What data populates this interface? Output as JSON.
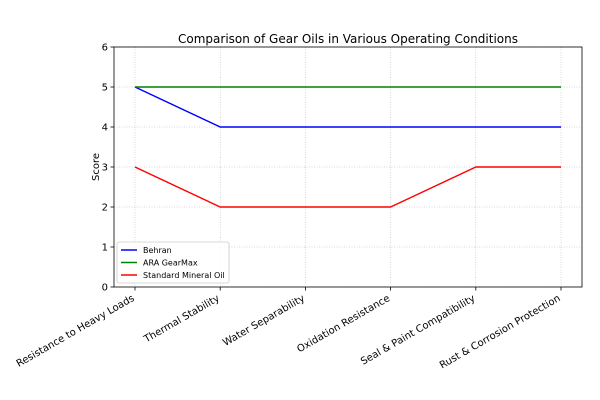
{
  "chart_data": {
    "type": "line",
    "title": "Comparison of Gear Oils in Various Operating Conditions",
    "xlabel": "",
    "ylabel": "Score",
    "ylim": [
      0,
      6
    ],
    "yticks": [
      "0",
      "1",
      "2",
      "3",
      "4",
      "5",
      "6"
    ],
    "grid": true,
    "legend_position": "lower-left",
    "categories": [
      "Resistance to Heavy Loads",
      "Thermal Stability",
      "Water Separability",
      "Oxidation Resistance",
      "Seal & Paint Compatibility",
      "Rust & Corrosion Protection"
    ],
    "series": [
      {
        "name": "Behran",
        "color": "#0000ff",
        "values": [
          5,
          4,
          4,
          4,
          4,
          4
        ]
      },
      {
        "name": "ARA GearMax",
        "color": "#008000",
        "values": [
          5,
          5,
          5,
          5,
          5,
          5
        ]
      },
      {
        "name": "Standard Mineral Oil",
        "color": "#ff0000",
        "values": [
          3,
          2,
          2,
          2,
          3,
          3
        ]
      }
    ]
  }
}
